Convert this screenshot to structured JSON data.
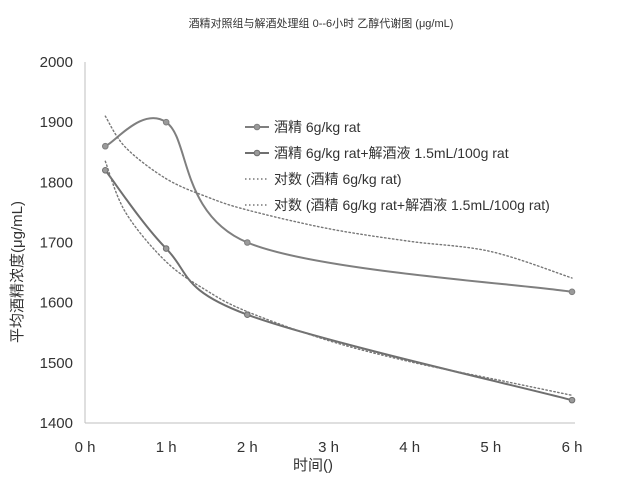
{
  "chart_data": {
    "type": "line",
    "title": "酒精对照组与解酒处理组 0--6小时 乙醇代谢图 (μg/mL)",
    "xlabel": "时间()",
    "ylabel": "平均酒精浓度(μg/mL)",
    "x_ticks": [
      {
        "value": 0,
        "label": "0 h"
      },
      {
        "value": 1,
        "label": "1 h"
      },
      {
        "value": 2,
        "label": "2 h"
      },
      {
        "value": 3,
        "label": "3 h"
      },
      {
        "value": 4,
        "label": "4 h"
      },
      {
        "value": 5,
        "label": "5 h"
      },
      {
        "value": 6,
        "label": "6 h"
      }
    ],
    "y_ticks": [
      1400,
      1500,
      1600,
      1700,
      1800,
      1900,
      2000
    ],
    "xlim": [
      0,
      6
    ],
    "ylim": [
      1400,
      2000
    ],
    "grid": false,
    "legend_position": "top-right",
    "series": [
      {
        "name": "酒精 6g/kg rat",
        "style": "line-markers",
        "color": "#7f7f7f",
        "x": [
          0.25,
          1.0,
          2.0,
          6.0
        ],
        "y": [
          1860,
          1900,
          1700,
          1618
        ]
      },
      {
        "name": "酒精 6g/kg rat+解酒液 1.5mL/100g rat",
        "style": "line-markers",
        "color": "#6f6f6f",
        "x": [
          0.25,
          1.0,
          2.0,
          6.0
        ],
        "y": [
          1820,
          1690,
          1580,
          1438
        ]
      },
      {
        "name": "对数 (酒精 6g/kg rat)",
        "style": "dotted-trend",
        "color": "#777777",
        "x": [
          0.25,
          0.5,
          1.0,
          1.5,
          2.0,
          3.0,
          4.0,
          5.0,
          6.0
        ],
        "y": [
          1910,
          1858,
          1806,
          1776,
          1754,
          1723,
          1702,
          1685,
          1641
        ]
      },
      {
        "name": "对数 (酒精 6g/kg rat+解酒液 1.5mL/100g rat)",
        "style": "dotted-trend",
        "color": "#777777",
        "x": [
          0.25,
          0.5,
          1.0,
          1.5,
          2.0,
          3.0,
          4.0,
          5.0,
          6.0
        ],
        "y": [
          1835,
          1750,
          1668,
          1620,
          1585,
          1537,
          1502,
          1474,
          1446
        ]
      }
    ]
  }
}
